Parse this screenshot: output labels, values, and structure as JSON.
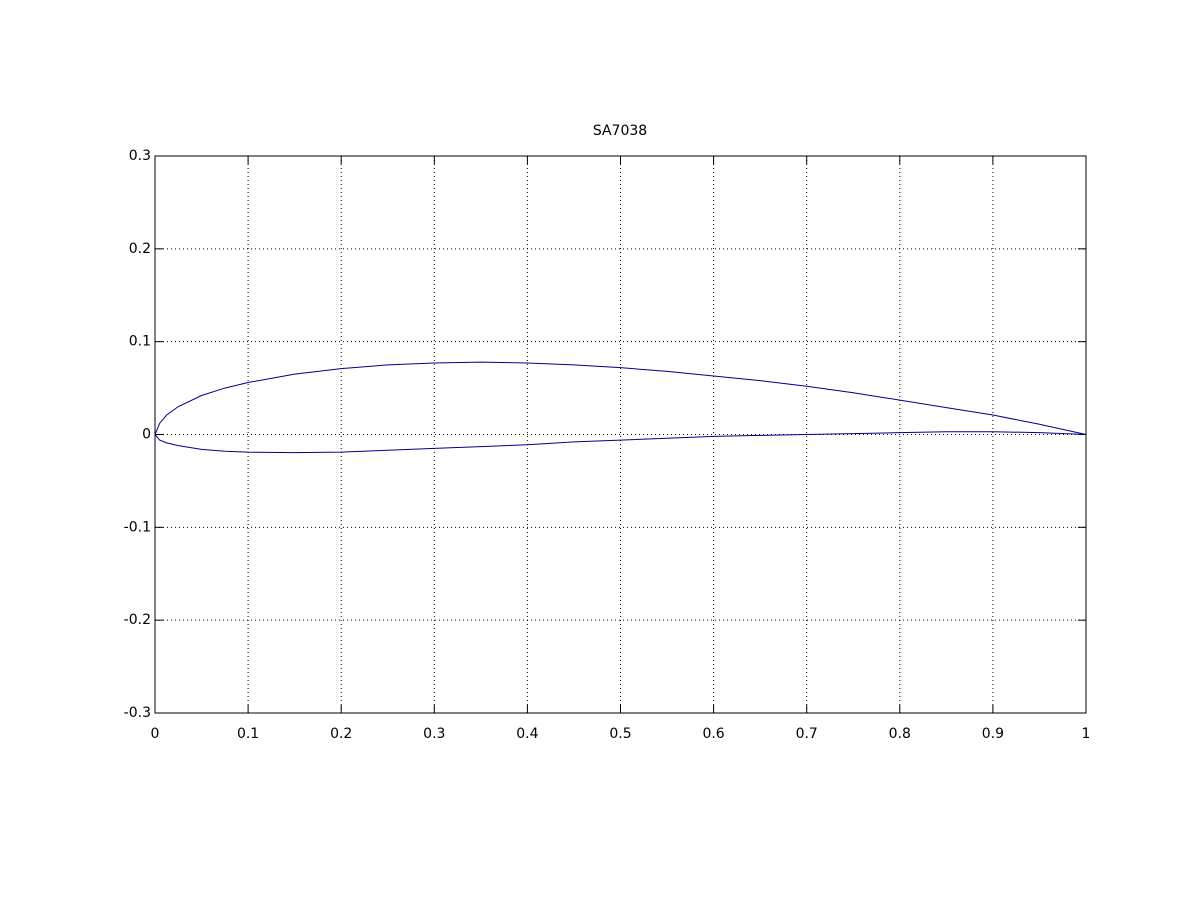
{
  "chart_data": {
    "type": "line",
    "title": "SA7038",
    "series": [
      {
        "color": "#00008b",
        "x": [
          1,
          0.95,
          0.9,
          0.85,
          0.8,
          0.75,
          0.7,
          0.65,
          0.6,
          0.55,
          0.5,
          0.45,
          0.4,
          0.35,
          0.3,
          0.25,
          0.2,
          0.15,
          0.1,
          0.075,
          0.05,
          0.025,
          0.0125,
          0.005,
          0,
          0.005,
          0.0125,
          0.025,
          0.05,
          0.075,
          0.1,
          0.15,
          0.2,
          0.25,
          0.3,
          0.35,
          0.4,
          0.45,
          0.5,
          0.55,
          0.6,
          0.65,
          0.7,
          0.75,
          0.8,
          0.85,
          0.9,
          0.95,
          1
        ],
        "values": [
          0,
          0.011,
          0.021,
          0.029,
          0.037,
          0.045,
          0.052,
          0.058,
          0.063,
          0.068,
          0.072,
          0.075,
          0.077,
          0.078,
          0.077,
          0.075,
          0.071,
          0.065,
          0.056,
          0.05,
          0.042,
          0.03,
          0.021,
          0.012,
          0,
          -0.006,
          -0.009,
          -0.012,
          -0.016,
          -0.018,
          -0.019,
          -0.0195,
          -0.019,
          -0.017,
          -0.015,
          -0.013,
          -0.011,
          -0.008,
          -0.006,
          -0.004,
          -0.002,
          -0.001,
          0,
          0.001,
          0.002,
          0.003,
          0.003,
          0.002,
          0
        ]
      }
    ],
    "xlim": [
      0,
      1
    ],
    "xticks": [
      0,
      0.1,
      0.2,
      0.3,
      0.4,
      0.5,
      0.6,
      0.7,
      0.8,
      0.9,
      1
    ],
    "ylim": [
      -0.3,
      0.3
    ],
    "yticks": [
      -0.3,
      -0.2,
      -0.1,
      0,
      0.1,
      0.2,
      0.3
    ],
    "grid": true
  }
}
